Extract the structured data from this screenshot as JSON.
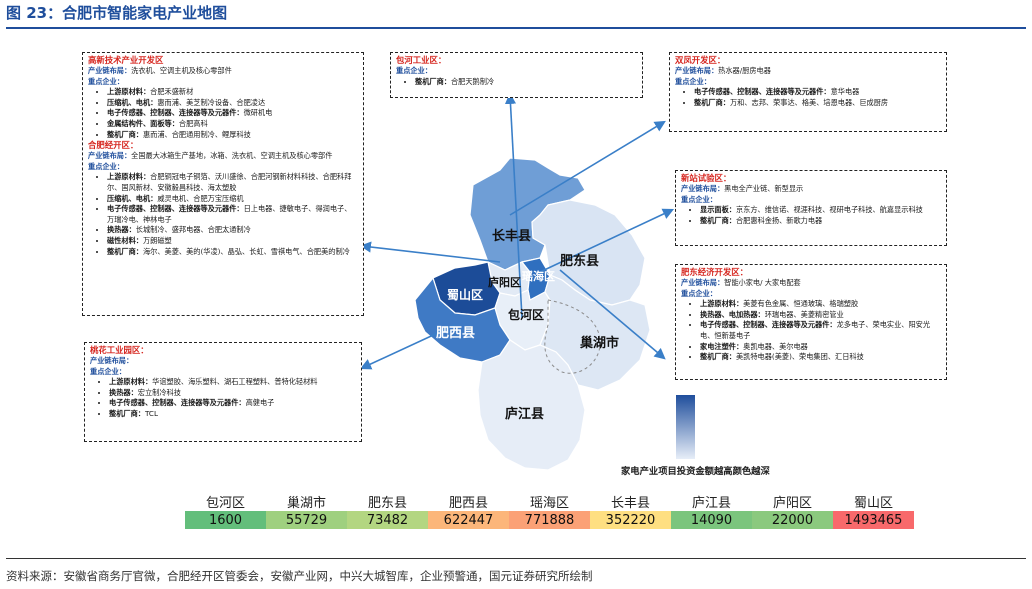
{
  "figure_title": "图 23：合肥市智能家电产业地图",
  "source": "资料来源：安徽省商务厅官微，合肥经开区管委会，安徽产业网，中兴大城智库，企业预警通，国元证券研究所绘制",
  "legend_note": "家电产业项目投资金额越高颜色越深",
  "colors": {
    "accent": "#1f4e9c",
    "heading_red": "#d6261f"
  },
  "map_labels": {
    "changfeng": "长丰县",
    "feidong": "肥东县",
    "luyang": "庐阳区",
    "yaohai": "瑶海区",
    "shushan": "蜀山区",
    "baohe": "包河区",
    "feixi": "肥西县",
    "chaohu": "巢湖市",
    "lujiang": "庐江县"
  },
  "boxes": {
    "gaoxin": {
      "title": "高新技术产业开发区",
      "chain_label": "产业链布局：",
      "chain_text": "洗衣机、空调主机及核心零部件",
      "firms_label": "重点企业：",
      "items": [
        {
          "k": "上游原材料：",
          "v": "合肥禾盛新材"
        },
        {
          "k": "压缩机、电机：",
          "v": "惠而浦、美芝制冷设备、合肥凌达"
        },
        {
          "k": "电子传感器、控制器、连接器等及元器件：",
          "v": "微研机电"
        },
        {
          "k": "金属结构件、面板等：",
          "v": "合肥高科"
        },
        {
          "k": "整机厂商：",
          "v": "惠而浦、合肥通用制冷、鲤厚科技"
        }
      ],
      "title2": "合肥经开区：",
      "chain2_label": "产业链布局：",
      "chain2_text": "全国最大冰箱生产基地，冰箱、洗衣机、空调主机及核心零部件",
      "firms2_label": "重点企业：",
      "items2": [
        {
          "k": "上游原材料：",
          "v": "合肥铜冠电子铜箔、沃川盛徐、合肥河钢新材料科技、合肥科拜尔、国风新材、安徽毅昌科技、海太塑胶"
        },
        {
          "k": "压缩机、电机：",
          "v": "威灵电机、合肥万宝压缩机"
        },
        {
          "k": "电子传感器、控制器、连接器等及元器件：",
          "v": "日上电器、捷敏电子、得润电子、万瑞冷电、神林电子"
        },
        {
          "k": "换热器：",
          "v": "长城制冷、盛邦电器、合肥太通制冷"
        },
        {
          "k": "磁性材料：",
          "v": "万朗磁塑"
        },
        {
          "k": "整机厂商：",
          "v": "海尔、美菱、美的(华凌)、晶弘、长虹、雪祺电气、合肥美的制冷"
        }
      ]
    },
    "baohe_ind": {
      "title": "包河工业区：",
      "firms_label": "重点企业：",
      "items": [
        {
          "k": "整机厂商：",
          "v": "合肥天鹅制冷"
        }
      ]
    },
    "shuangfeng": {
      "title": "双凤开发区：",
      "chain_label": "产业链布局：",
      "chain_text": "热水器/厨房电器",
      "firms_label": "重点企业：",
      "items": [
        {
          "k": "电子传感器、控制器、连接器等及元器件：",
          "v": "意华电器"
        },
        {
          "k": "整机厂商：",
          "v": "万和、志邦、荣事达、格美、培恩电器、巨成厨房"
        }
      ]
    },
    "xinzhan": {
      "title": "新站试验区：",
      "chain_label": "产业链布局：",
      "chain_text": "黑电全产业链、新型显示",
      "firms_label": "重点企业：",
      "items": [
        {
          "k": "显示面板：",
          "v": "京东方、维信诺、视涯科技、视研电子科技、航嘉显示科技"
        },
        {
          "k": "整机厂商：",
          "v": "合肥惠科金扬、新歌力电器"
        }
      ]
    },
    "feidong_dev": {
      "title": "肥东经济开发区：",
      "chain_label": "产业链布局：",
      "chain_text": "智能小家电/ 大家电配套",
      "firms_label": "重点企业：",
      "items": [
        {
          "k": "上游原材料：",
          "v": "美菱有色金属、恒通玻璃、格瑞塑胶"
        },
        {
          "k": "换热器、电加热器：",
          "v": "环瑞电器、美菱精密管业"
        },
        {
          "k": "电子传感器、控制器、连接器等及元器件：",
          "v": "龙多电子、荣电实业、阳安光电、恒新基电子"
        },
        {
          "k": "家电注塑件：",
          "v": "奥凯电器、美尔电器"
        },
        {
          "k": "整机厂商：",
          "v": "美凯特电器(美菱)、荣电集团、汇日科技"
        }
      ]
    },
    "taohua": {
      "title": "桃花工业园区：",
      "chain_label": "产业链布局：",
      "chain_text": "",
      "firms_label": "重点企业：",
      "items": [
        {
          "k": "上游原材料：",
          "v": "华谊塑胶、海乐塑料、湖石工程塑料、普特化轻材料"
        },
        {
          "k": "换热器：",
          "v": "宏立制冷科技"
        },
        {
          "k": "电子传感器、控制器、连接器等及元器件：",
          "v": "高健电子"
        },
        {
          "k": "整机厂商：",
          "v": "TCL"
        }
      ]
    }
  },
  "chart_data": {
    "type": "table",
    "categories": [
      "包河区",
      "巢湖市",
      "肥东县",
      "肥西县",
      "瑶海区",
      "长丰县",
      "庐江县",
      "庐阳区",
      "蜀山区"
    ],
    "values": [
      1600,
      55729,
      73482,
      622447,
      771888,
      352220,
      14090,
      22000,
      1493465
    ],
    "value_labels": [
      "1600",
      "55729",
      "73482",
      "622447",
      "771888",
      "352220",
      "14090",
      "22000",
      "1493465"
    ],
    "cell_colors": [
      "#63be7b",
      "#9fd07f",
      "#b3d681",
      "#fcb67a",
      "#fba176",
      "#fedf81",
      "#7bc57d",
      "#8bc97e",
      "#f8696b"
    ]
  }
}
